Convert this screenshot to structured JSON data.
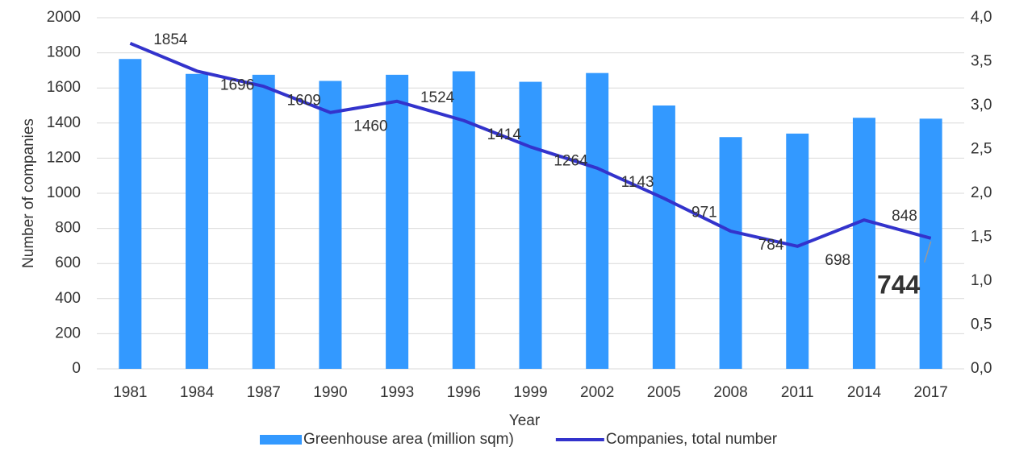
{
  "chart_data": {
    "type": "bar-line",
    "x_label": "Year",
    "y_label": "Number of companies",
    "categories": [
      "1981",
      "1984",
      "1987",
      "1990",
      "1993",
      "1996",
      "1999",
      "2002",
      "2005",
      "2008",
      "2011",
      "2014",
      "2017"
    ],
    "series": [
      {
        "name": "Greenhouse area (million sqm)",
        "type": "bar",
        "color": "#3399ff",
        "axis": "y2",
        "values": [
          3.53,
          3.36,
          3.35,
          3.28,
          3.35,
          3.39,
          3.27,
          3.37,
          3.0,
          2.64,
          2.68,
          2.86,
          2.85
        ]
      },
      {
        "name": "Companies, total number",
        "type": "line",
        "color": "#3333cc",
        "axis": "y",
        "values": [
          1854,
          1696,
          1609,
          1460,
          1524,
          1414,
          1264,
          1143,
          971,
          784,
          698,
          848,
          744
        ]
      }
    ],
    "ylim": [
      0,
      2000
    ],
    "yticks": [
      0,
      200,
      400,
      600,
      800,
      1000,
      1200,
      1400,
      1600,
      1800,
      2000
    ],
    "y2lim": [
      0,
      4
    ],
    "y2ticks": [
      {
        "value": 0,
        "label": "0,0"
      },
      {
        "value": 0.5,
        "label": "0,5"
      },
      {
        "value": 1,
        "label": "1,0"
      },
      {
        "value": 1.5,
        "label": "1,5"
      },
      {
        "value": 2,
        "label": "2,0"
      },
      {
        "value": 2.5,
        "label": "2,5"
      },
      {
        "value": 3,
        "label": "3,0"
      },
      {
        "value": 3.5,
        "label": "3,5"
      },
      {
        "value": 4,
        "label": "4,0"
      }
    ],
    "grid": true,
    "legend": "bottom"
  }
}
